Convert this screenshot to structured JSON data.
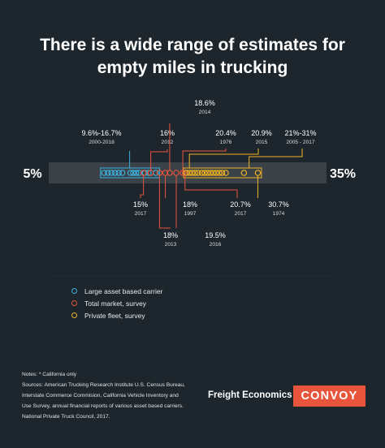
{
  "title_line1": "There is a wide range of estimates for",
  "title_line2": "empty miles in trucking",
  "colors": {
    "background": "#1d262c",
    "track": "#3a4248",
    "large_asset": "#3bb2e0",
    "total_market": "#e8553d",
    "private_fleet": "#f0b323",
    "brand": "#e8553d"
  },
  "chart_data": {
    "type": "scatter",
    "xlim": [
      5,
      35
    ],
    "x_min_label": "5%",
    "x_max_label": "35%",
    "series": [
      {
        "name": "Large asset based carrier",
        "color": "#3bb2e0",
        "values": [
          9.6,
          10.1,
          10.6,
          11.1,
          11.6,
          12.1,
          13.2,
          13.6,
          14.0,
          14.4,
          15.2,
          15.7,
          16.7
        ]
      },
      {
        "name": "Total market, survey",
        "color": "#e8553d",
        "values": [
          15,
          16,
          17.2,
          18,
          18.6,
          19.5,
          20.4,
          20.7
        ]
      },
      {
        "name": "Private fleet, survey",
        "color": "#f0b323",
        "values": [
          20.9,
          21.3,
          21.7,
          22.1,
          22.5,
          23.0,
          23.4,
          23.8,
          24.2,
          24.6,
          25.0,
          25.4,
          25.8,
          26.3,
          28.8,
          30.7
        ]
      }
    ],
    "annotations": [
      {
        "value": "9.6%-16.7%",
        "sub": "2000-2018"
      },
      {
        "value": "16%",
        "sub": "2012"
      },
      {
        "value": "18.6%",
        "sub": "2014"
      },
      {
        "value": "20.4%",
        "sub": "1976"
      },
      {
        "value": "20.9%",
        "sub": "2015"
      },
      {
        "value": "21%-31%",
        "sub": "2005 - 2017"
      },
      {
        "value": "15%",
        "sub": "2017"
      },
      {
        "value": "18%",
        "sub": "1997"
      },
      {
        "value": "18%",
        "sub": "2013"
      },
      {
        "value": "19.5%",
        "sub": "2016"
      },
      {
        "value": "20.7%",
        "sub": "2017"
      },
      {
        "value": "30.7%",
        "sub": "1974"
      }
    ]
  },
  "legend": [
    {
      "label": "Large asset based carrier",
      "color": "#3bb2e0"
    },
    {
      "label": "Total market, survey",
      "color": "#e8553d"
    },
    {
      "label": "Private fleet, survey",
      "color": "#f0b323"
    }
  ],
  "notes": {
    "line1": "Notes: * California only",
    "line2": "Sources: American Trucking Research Institute U.S. Census Bureau,",
    "line3": "Interstate Commerce Commision, California Vehicle Inventory and",
    "line4": "Use Survey, annual financial reports of various asset based carriers.",
    "line5": "National Private Truck Council,  2017."
  },
  "brand": {
    "text": "Freight Economics",
    "logo": "CONVOY"
  }
}
